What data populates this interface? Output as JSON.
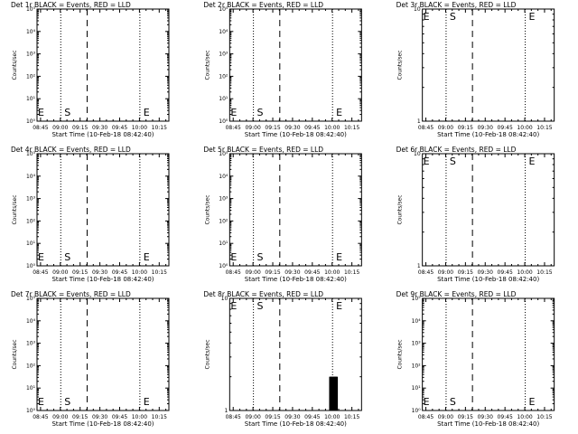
{
  "chart_data": [
    {
      "type": "line",
      "title": "Det 1r BLACK = Events, RED = LLD",
      "xlabel": "Start Time (10-Feb-18 08:42:40)",
      "ylabel": "Counts/sec",
      "yscale": "log",
      "ylim": [
        1,
        100000
      ],
      "y_ticks": [
        "10⁰",
        "10¹",
        "10²",
        "10³",
        "10⁴",
        "10⁵"
      ],
      "x_ticks": [
        "08:45",
        "09:00",
        "09:15",
        "09:30",
        "09:45",
        "10:00",
        "10:15"
      ],
      "xlim": [
        -2.67,
        97.33
      ],
      "vlines": [
        {
          "x": 15.33,
          "style": "dotted"
        },
        {
          "x": 35.33,
          "style": "dashed"
        },
        {
          "x": 75.33,
          "style": "dotted"
        }
      ],
      "markers": [
        {
          "text": "E",
          "x": -2.67,
          "level": "low"
        },
        {
          "text": "S",
          "x": 17.33,
          "level": "low"
        },
        {
          "text": "E",
          "x": 77.33,
          "level": "low"
        }
      ],
      "series": []
    },
    {
      "type": "line",
      "title": "Det 2r BLACK = Events, RED = LLD",
      "xlabel": "Start Time (10-Feb-18 08:42:40)",
      "ylabel": "Counts/sec",
      "yscale": "log",
      "ylim": [
        1,
        100000
      ],
      "y_ticks": [
        "10⁰",
        "10¹",
        "10²",
        "10³",
        "10⁴",
        "10⁵"
      ],
      "x_ticks": [
        "08:45",
        "09:00",
        "09:15",
        "09:30",
        "09:45",
        "10:00",
        "10:15"
      ],
      "xlim": [
        -2.67,
        97.33
      ],
      "vlines": [
        {
          "x": 15.33,
          "style": "dotted"
        },
        {
          "x": 35.33,
          "style": "dashed"
        },
        {
          "x": 75.33,
          "style": "dotted"
        }
      ],
      "markers": [
        {
          "text": "E",
          "x": -2.67,
          "level": "low"
        },
        {
          "text": "S",
          "x": 17.33,
          "level": "low"
        },
        {
          "text": "E",
          "x": 77.33,
          "level": "low"
        }
      ],
      "series": []
    },
    {
      "type": "line",
      "title": "Det 3r BLACK = Events, RED = LLD",
      "xlabel": "Start Time (10-Feb-18 08:42:40)",
      "ylabel": "Counts/sec",
      "yscale": "log",
      "ylim": [
        1,
        10
      ],
      "y_ticks": [
        "1",
        "10"
      ],
      "x_ticks": [
        "08:45",
        "09:00",
        "09:15",
        "09:30",
        "09:45",
        "10:00",
        "10:15"
      ],
      "xlim": [
        -2.67,
        97.33
      ],
      "vlines": [
        {
          "x": 15.33,
          "style": "dotted"
        },
        {
          "x": 35.33,
          "style": "dashed"
        },
        {
          "x": 75.33,
          "style": "dotted"
        }
      ],
      "markers": [
        {
          "text": "E",
          "x": -2.67,
          "level": "high"
        },
        {
          "text": "S",
          "x": 17.33,
          "level": "high"
        },
        {
          "text": "E",
          "x": 77.33,
          "level": "high"
        }
      ],
      "series": []
    },
    {
      "type": "line",
      "title": "Det 4r BLACK = Events, RED = LLD",
      "xlabel": "Start Time (10-Feb-18 08:42:40)",
      "ylabel": "Counts/sec",
      "yscale": "log",
      "ylim": [
        1,
        100000
      ],
      "y_ticks": [
        "10⁰",
        "10¹",
        "10²",
        "10³",
        "10⁴",
        "10⁵"
      ],
      "x_ticks": [
        "08:45",
        "09:00",
        "09:15",
        "09:30",
        "09:45",
        "10:00",
        "10:15"
      ],
      "xlim": [
        -2.67,
        97.33
      ],
      "vlines": [
        {
          "x": 15.33,
          "style": "dotted"
        },
        {
          "x": 35.33,
          "style": "dashed"
        },
        {
          "x": 75.33,
          "style": "dotted"
        }
      ],
      "markers": [
        {
          "text": "E",
          "x": -2.67,
          "level": "low"
        },
        {
          "text": "S",
          "x": 17.33,
          "level": "low"
        },
        {
          "text": "E",
          "x": 77.33,
          "level": "low"
        }
      ],
      "series": []
    },
    {
      "type": "line",
      "title": "Det 5r BLACK = Events, RED = LLD",
      "xlabel": "Start Time (10-Feb-18 08:42:40)",
      "ylabel": "Counts/sec",
      "yscale": "log",
      "ylim": [
        1,
        100000
      ],
      "y_ticks": [
        "10⁰",
        "10¹",
        "10²",
        "10³",
        "10⁴",
        "10⁵"
      ],
      "x_ticks": [
        "08:45",
        "09:00",
        "09:15",
        "09:30",
        "09:45",
        "10:00",
        "10:15"
      ],
      "xlim": [
        -2.67,
        97.33
      ],
      "vlines": [
        {
          "x": 15.33,
          "style": "dotted"
        },
        {
          "x": 35.33,
          "style": "dashed"
        },
        {
          "x": 75.33,
          "style": "dotted"
        }
      ],
      "markers": [
        {
          "text": "E",
          "x": -2.67,
          "level": "low"
        },
        {
          "text": "S",
          "x": 17.33,
          "level": "low"
        },
        {
          "text": "E",
          "x": 77.33,
          "level": "low"
        }
      ],
      "series": []
    },
    {
      "type": "line",
      "title": "Det 6r BLACK = Events, RED = LLD",
      "xlabel": "Start Time (10-Feb-18 08:42:40)",
      "ylabel": "Counts/sec",
      "yscale": "log",
      "ylim": [
        1,
        10
      ],
      "y_ticks": [
        "1",
        "10"
      ],
      "x_ticks": [
        "08:45",
        "09:00",
        "09:15",
        "09:30",
        "09:45",
        "10:00",
        "10:15"
      ],
      "xlim": [
        -2.67,
        97.33
      ],
      "vlines": [
        {
          "x": 15.33,
          "style": "dotted"
        },
        {
          "x": 35.33,
          "style": "dashed"
        },
        {
          "x": 75.33,
          "style": "dotted"
        }
      ],
      "markers": [
        {
          "text": "E",
          "x": -2.67,
          "level": "high"
        },
        {
          "text": "S",
          "x": 17.33,
          "level": "high"
        },
        {
          "text": "E",
          "x": 77.33,
          "level": "high"
        }
      ],
      "series": []
    },
    {
      "type": "line",
      "title": "Det 7r BLACK = Events, RED = LLD",
      "xlabel": "Start Time (10-Feb-18 08:42:40)",
      "ylabel": "Counts/sec",
      "yscale": "log",
      "ylim": [
        1,
        100000
      ],
      "y_ticks": [
        "10⁰",
        "10¹",
        "10²",
        "10³",
        "10⁴",
        "10⁵"
      ],
      "x_ticks": [
        "08:45",
        "09:00",
        "09:15",
        "09:30",
        "09:45",
        "10:00",
        "10:15"
      ],
      "xlim": [
        -2.67,
        97.33
      ],
      "vlines": [
        {
          "x": 15.33,
          "style": "dotted"
        },
        {
          "x": 35.33,
          "style": "dashed"
        },
        {
          "x": 75.33,
          "style": "dotted"
        }
      ],
      "markers": [
        {
          "text": "E",
          "x": -2.67,
          "level": "low"
        },
        {
          "text": "S",
          "x": 17.33,
          "level": "low"
        },
        {
          "text": "E",
          "x": 77.33,
          "level": "low"
        }
      ],
      "series": []
    },
    {
      "type": "line",
      "title": "Det 8r BLACK = Events, RED = LLD",
      "xlabel": "Start Time (10-Feb-18 08:42:40)",
      "ylabel": "Counts/sec",
      "yscale": "log",
      "ylim": [
        1,
        10
      ],
      "y_ticks": [
        "1",
        "10"
      ],
      "x_ticks": [
        "08:45",
        "09:00",
        "09:15",
        "09:30",
        "09:45",
        "10:00",
        "10:15"
      ],
      "xlim": [
        -2.67,
        97.33
      ],
      "vlines": [
        {
          "x": 15.33,
          "style": "dotted"
        },
        {
          "x": 35.33,
          "style": "dashed"
        },
        {
          "x": 75.33,
          "style": "dotted"
        }
      ],
      "markers": [
        {
          "text": "E",
          "x": -2.67,
          "level": "high"
        },
        {
          "text": "S",
          "x": 17.33,
          "level": "high"
        },
        {
          "text": "E",
          "x": 77.33,
          "level": "high"
        }
      ],
      "series": [
        {
          "name": "Events",
          "color": "#000000",
          "style": "spikes",
          "points": [
            [
              73.1,
              2
            ],
            [
              73.6,
              2
            ],
            [
              74.1,
              2
            ],
            [
              74.5,
              2
            ],
            [
              74.9,
              2
            ],
            [
              75.4,
              2
            ],
            [
              75.9,
              2
            ],
            [
              76.3,
              2
            ],
            [
              76.8,
              2
            ],
            [
              77.2,
              2
            ],
            [
              77.7,
              2
            ],
            [
              78.1,
              2
            ],
            [
              78.6,
              2
            ]
          ]
        }
      ]
    },
    {
      "type": "line",
      "title": "Det 9r BLACK = Events, RED = LLD",
      "xlabel": "Start Time (10-Feb-18 08:42:40)",
      "ylabel": "Counts/sec",
      "yscale": "log",
      "ylim": [
        1,
        100000
      ],
      "y_ticks": [
        "10⁰",
        "10¹",
        "10²",
        "10³",
        "10⁴",
        "10⁵"
      ],
      "x_ticks": [
        "08:45",
        "09:00",
        "09:15",
        "09:30",
        "09:45",
        "10:00",
        "10:15"
      ],
      "xlim": [
        -2.67,
        97.33
      ],
      "vlines": [
        {
          "x": 15.33,
          "style": "dotted"
        },
        {
          "x": 35.33,
          "style": "dashed"
        },
        {
          "x": 75.33,
          "style": "dotted"
        }
      ],
      "markers": [
        {
          "text": "E",
          "x": -2.67,
          "level": "low"
        },
        {
          "text": "S",
          "x": 17.33,
          "level": "low"
        },
        {
          "text": "E",
          "x": 77.33,
          "level": "low"
        }
      ],
      "series": []
    }
  ]
}
